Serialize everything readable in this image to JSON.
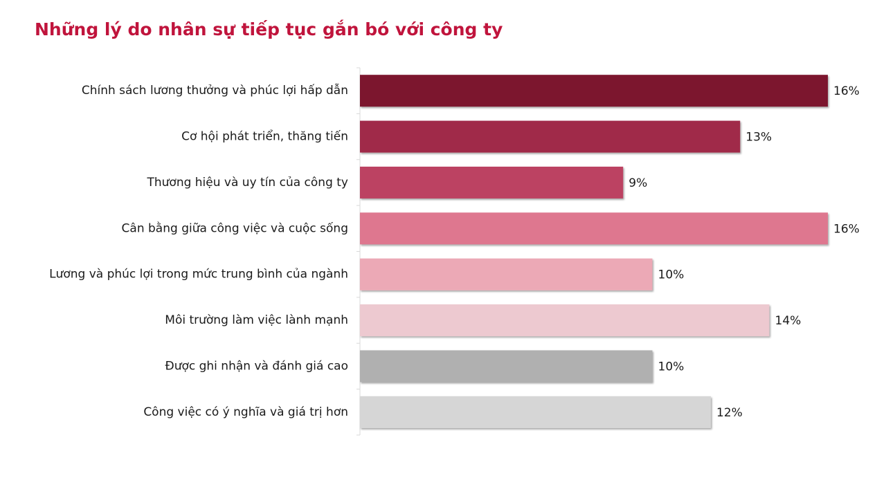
{
  "chart_data": {
    "type": "bar",
    "orientation": "horizontal",
    "title": "Những lý do nhân sự tiếp tục gắn bó với công ty",
    "xlabel": "",
    "ylabel": "",
    "categories": [
      "Chính sách lương thưởng và phúc lợi hấp dẫn",
      "Cơ hội phát triển, thăng tiến",
      "Thương hiệu và uy tín của công ty",
      "Cân bằng giữa công việc và cuộc sống",
      "Lương và phúc lợi trong mức trung bình của ngành",
      "Môi trường làm việc lành mạnh",
      "Được ghi nhận và đánh giá cao",
      "Công việc có ý nghĩa và giá trị hơn"
    ],
    "values": [
      16,
      13,
      9,
      16,
      10,
      14,
      10,
      12
    ],
    "value_labels": [
      "16%",
      "13%",
      "9%",
      "16%",
      "10%",
      "14%",
      "10%",
      "12%"
    ],
    "bar_colors": [
      "#7b132d",
      "#a0294a",
      "#bc4262",
      "#de778f",
      "#eca9b6",
      "#edc9d0",
      "#b0b0b0",
      "#d6d6d6"
    ],
    "xlim": [
      0,
      16
    ],
    "grid": false,
    "legend": "none"
  }
}
